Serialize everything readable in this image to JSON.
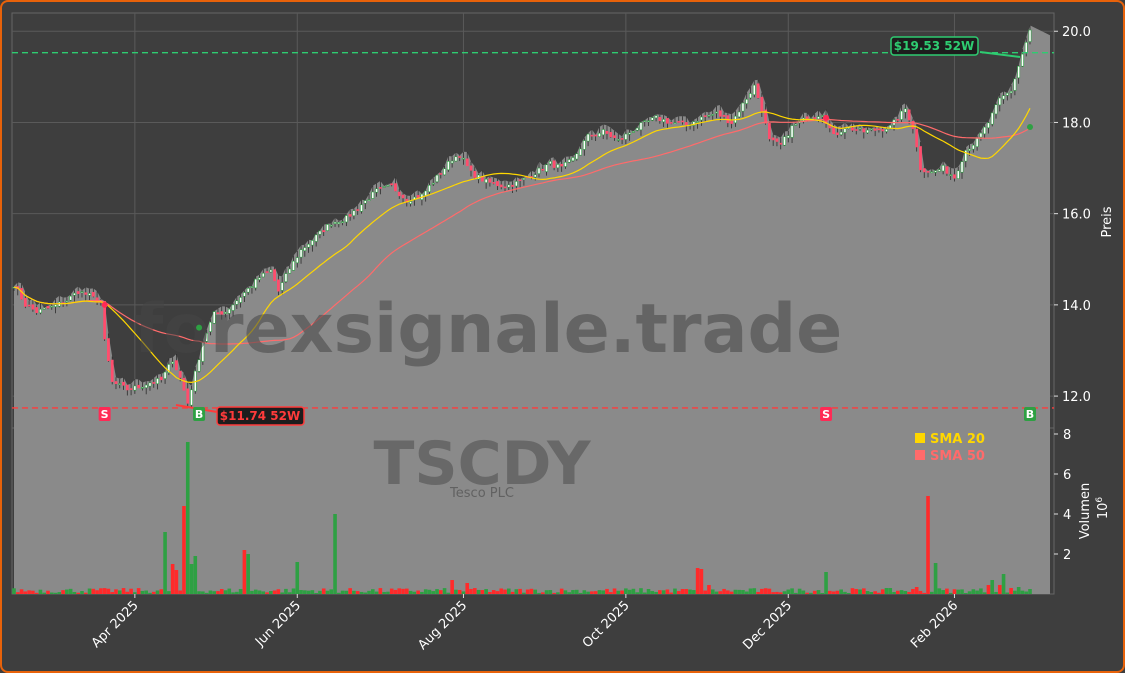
{
  "chart_data": {
    "type": "candlestick",
    "ticker": "TSCDY",
    "company": "Tesco PLC",
    "watermark": "forexsignale.trade",
    "ylabel_price": "Preis",
    "ylabel_volume": "Volumen",
    "volume_unit": "10",
    "volume_unit_exp": "6",
    "price_ylim": [
      11.3,
      20.4
    ],
    "price_ticks": [
      12.0,
      14.0,
      16.0,
      18.0,
      20.0
    ],
    "volume_ylim": [
      0,
      8.3
    ],
    "volume_ticks": [
      2,
      4,
      6,
      8
    ],
    "x_ticks": [
      "Apr 2025",
      "Jun 2025",
      "Aug 2025",
      "Oct 2025",
      "Dec 2025",
      "Feb 2026"
    ],
    "high_52w": {
      "value": 19.53,
      "label": "$19.53 52W"
    },
    "low_52w": {
      "value": 11.74,
      "label": "$11.74 52W"
    },
    "legend": [
      {
        "name": "SMA 20",
        "color": "#ffd700"
      },
      {
        "name": "SMA 50",
        "color": "#ff6b6b"
      }
    ],
    "signals": [
      "S",
      "B",
      "S",
      "B"
    ],
    "colors": {
      "up": "#2ea043",
      "down": "#ff2a2a",
      "sma20": "#ffd700",
      "sma50": "#ff6b6b",
      "hi": "#2ecc71",
      "lo": "#ff3b3b"
    },
    "close_waypoints": [
      [
        0,
        14.45
      ],
      [
        3,
        14.0
      ],
      [
        6,
        13.85
      ],
      [
        10,
        13.95
      ],
      [
        14,
        14.1
      ],
      [
        17,
        14.3
      ],
      [
        20,
        14.2
      ],
      [
        23,
        14.05
      ],
      [
        24,
        13.2
      ],
      [
        26,
        12.3
      ],
      [
        30,
        12.15
      ],
      [
        33,
        12.2
      ],
      [
        36,
        12.3
      ],
      [
        39,
        12.35
      ],
      [
        42,
        12.8
      ],
      [
        44,
        12.4
      ],
      [
        46,
        11.85
      ],
      [
        48,
        12.5
      ],
      [
        50,
        13.2
      ],
      [
        53,
        13.8
      ],
      [
        56,
        13.85
      ],
      [
        59,
        14.1
      ],
      [
        62,
        14.35
      ],
      [
        65,
        14.6
      ],
      [
        68,
        14.75
      ],
      [
        70,
        14.3
      ],
      [
        73,
        14.8
      ],
      [
        76,
        15.2
      ],
      [
        80,
        15.5
      ],
      [
        84,
        15.8
      ],
      [
        88,
        15.9
      ],
      [
        92,
        16.2
      ],
      [
        96,
        16.5
      ],
      [
        100,
        16.6
      ],
      [
        104,
        16.3
      ],
      [
        108,
        16.4
      ],
      [
        112,
        16.8
      ],
      [
        116,
        17.2
      ],
      [
        118,
        17.3
      ],
      [
        121,
        16.9
      ],
      [
        125,
        16.7
      ],
      [
        130,
        16.6
      ],
      [
        134,
        16.7
      ],
      [
        138,
        16.9
      ],
      [
        142,
        17.1
      ],
      [
        145,
        17.0
      ],
      [
        148,
        17.2
      ],
      [
        152,
        17.7
      ],
      [
        156,
        17.8
      ],
      [
        160,
        17.6
      ],
      [
        165,
        17.9
      ],
      [
        170,
        18.1
      ],
      [
        174,
        18.0
      ],
      [
        178,
        17.95
      ],
      [
        182,
        18.1
      ],
      [
        186,
        18.2
      ],
      [
        190,
        18.0
      ],
      [
        193,
        18.4
      ],
      [
        196,
        18.8
      ],
      [
        198,
        18.3
      ],
      [
        200,
        17.6
      ],
      [
        203,
        17.5
      ],
      [
        206,
        17.9
      ],
      [
        210,
        18.1
      ],
      [
        214,
        18.2
      ],
      [
        217,
        17.7
      ],
      [
        220,
        17.9
      ],
      [
        225,
        17.8
      ],
      [
        229,
        17.85
      ],
      [
        232,
        17.9
      ],
      [
        236,
        18.3
      ],
      [
        238,
        17.9
      ],
      [
        240,
        17.0
      ],
      [
        243,
        16.9
      ],
      [
        246,
        17.0
      ],
      [
        249,
        16.8
      ],
      [
        252,
        17.4
      ],
      [
        255,
        17.6
      ],
      [
        258,
        18.0
      ],
      [
        261,
        18.5
      ],
      [
        264,
        18.7
      ],
      [
        267,
        19.5
      ],
      [
        269,
        20.0
      ]
    ],
    "volume_spikes": [
      [
        40,
        3.1,
        "up"
      ],
      [
        42,
        1.5,
        "down"
      ],
      [
        43,
        1.2,
        "down"
      ],
      [
        45,
        4.4,
        "down"
      ],
      [
        46,
        7.6,
        "up"
      ],
      [
        47,
        1.5,
        "up"
      ],
      [
        48,
        1.9,
        "up"
      ],
      [
        61,
        2.2,
        "down"
      ],
      [
        62,
        2.0,
        "up"
      ],
      [
        75,
        1.6,
        "up"
      ],
      [
        85,
        4.0,
        "up"
      ],
      [
        116,
        0.7,
        "down"
      ],
      [
        120,
        0.55,
        "down"
      ],
      [
        181,
        1.3,
        "down"
      ],
      [
        182,
        1.25,
        "down"
      ],
      [
        184,
        0.45,
        "down"
      ],
      [
        215,
        1.1,
        "up"
      ],
      [
        239,
        0.35,
        "down"
      ],
      [
        242,
        4.9,
        "down"
      ],
      [
        244,
        1.55,
        "up"
      ],
      [
        258,
        0.45,
        "down"
      ],
      [
        259,
        0.7,
        "up"
      ],
      [
        261,
        0.45,
        "down"
      ],
      [
        262,
        1.0,
        "up"
      ],
      [
        264,
        0.3,
        "down"
      ],
      [
        266,
        0.35,
        "up"
      ]
    ]
  }
}
